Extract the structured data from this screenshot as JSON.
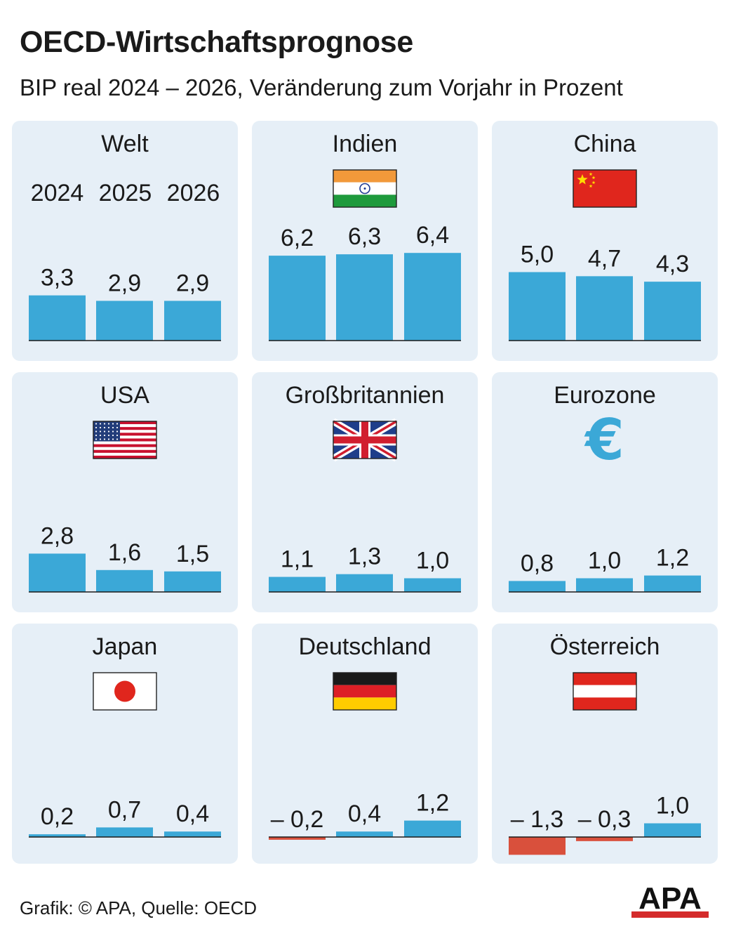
{
  "title": "OECD-Wirtschaftsprognose",
  "subtitle": "BIP real 2024 – 2026, Veränderung zum Vorjahr in Prozent",
  "colors": {
    "panel_bg": "#e6eff7",
    "positive_bar": "#3ba8d7",
    "negative_bar": "#d9503c",
    "axis": "#1a1a1a"
  },
  "years": [
    "2024",
    "2025",
    "2026"
  ],
  "chart_data": {
    "type": "bar",
    "categories": [
      "2024",
      "2025",
      "2026"
    ],
    "unit": "Veränderung zum Vorjahr in Prozent",
    "panels": [
      {
        "country": "Welt",
        "icon": "globe-none",
        "values": [
          3.3,
          2.9,
          2.9
        ],
        "labels": [
          "3,3",
          "2,9",
          "2,9"
        ]
      },
      {
        "country": "Indien",
        "icon": "flag-india-icon",
        "values": [
          6.2,
          6.3,
          6.4
        ],
        "labels": [
          "6,2",
          "6,3",
          "6,4"
        ]
      },
      {
        "country": "China",
        "icon": "flag-china-icon",
        "values": [
          5.0,
          4.7,
          4.3
        ],
        "labels": [
          "5,0",
          "4,7",
          "4,3"
        ]
      },
      {
        "country": "USA",
        "icon": "flag-usa-icon",
        "values": [
          2.8,
          1.6,
          1.5
        ],
        "labels": [
          "2,8",
          "1,6",
          "1,5"
        ]
      },
      {
        "country": "Großbritannien",
        "icon": "flag-uk-icon",
        "values": [
          1.1,
          1.3,
          1.0
        ],
        "labels": [
          "1,1",
          "1,3",
          "1,0"
        ]
      },
      {
        "country": "Eurozone",
        "icon": "euro-icon",
        "values": [
          0.8,
          1.0,
          1.2
        ],
        "labels": [
          "0,8",
          "1,0",
          "1,2"
        ]
      },
      {
        "country": "Japan",
        "icon": "flag-japan-icon",
        "values": [
          0.2,
          0.7,
          0.4
        ],
        "labels": [
          "0,2",
          "0,7",
          "0,4"
        ]
      },
      {
        "country": "Deutschland",
        "icon": "flag-germany-icon",
        "values": [
          -0.2,
          0.4,
          1.2
        ],
        "labels": [
          "– 0,2",
          "0,4",
          "1,2"
        ]
      },
      {
        "country": "Österreich",
        "icon": "flag-austria-icon",
        "values": [
          -1.3,
          -0.3,
          1.0
        ],
        "labels": [
          "– 1,3",
          "– 0,3",
          "1,0"
        ]
      }
    ]
  },
  "footer": {
    "credit": "Grafik: © APA, Quelle: OECD",
    "logo_text": "APA"
  }
}
